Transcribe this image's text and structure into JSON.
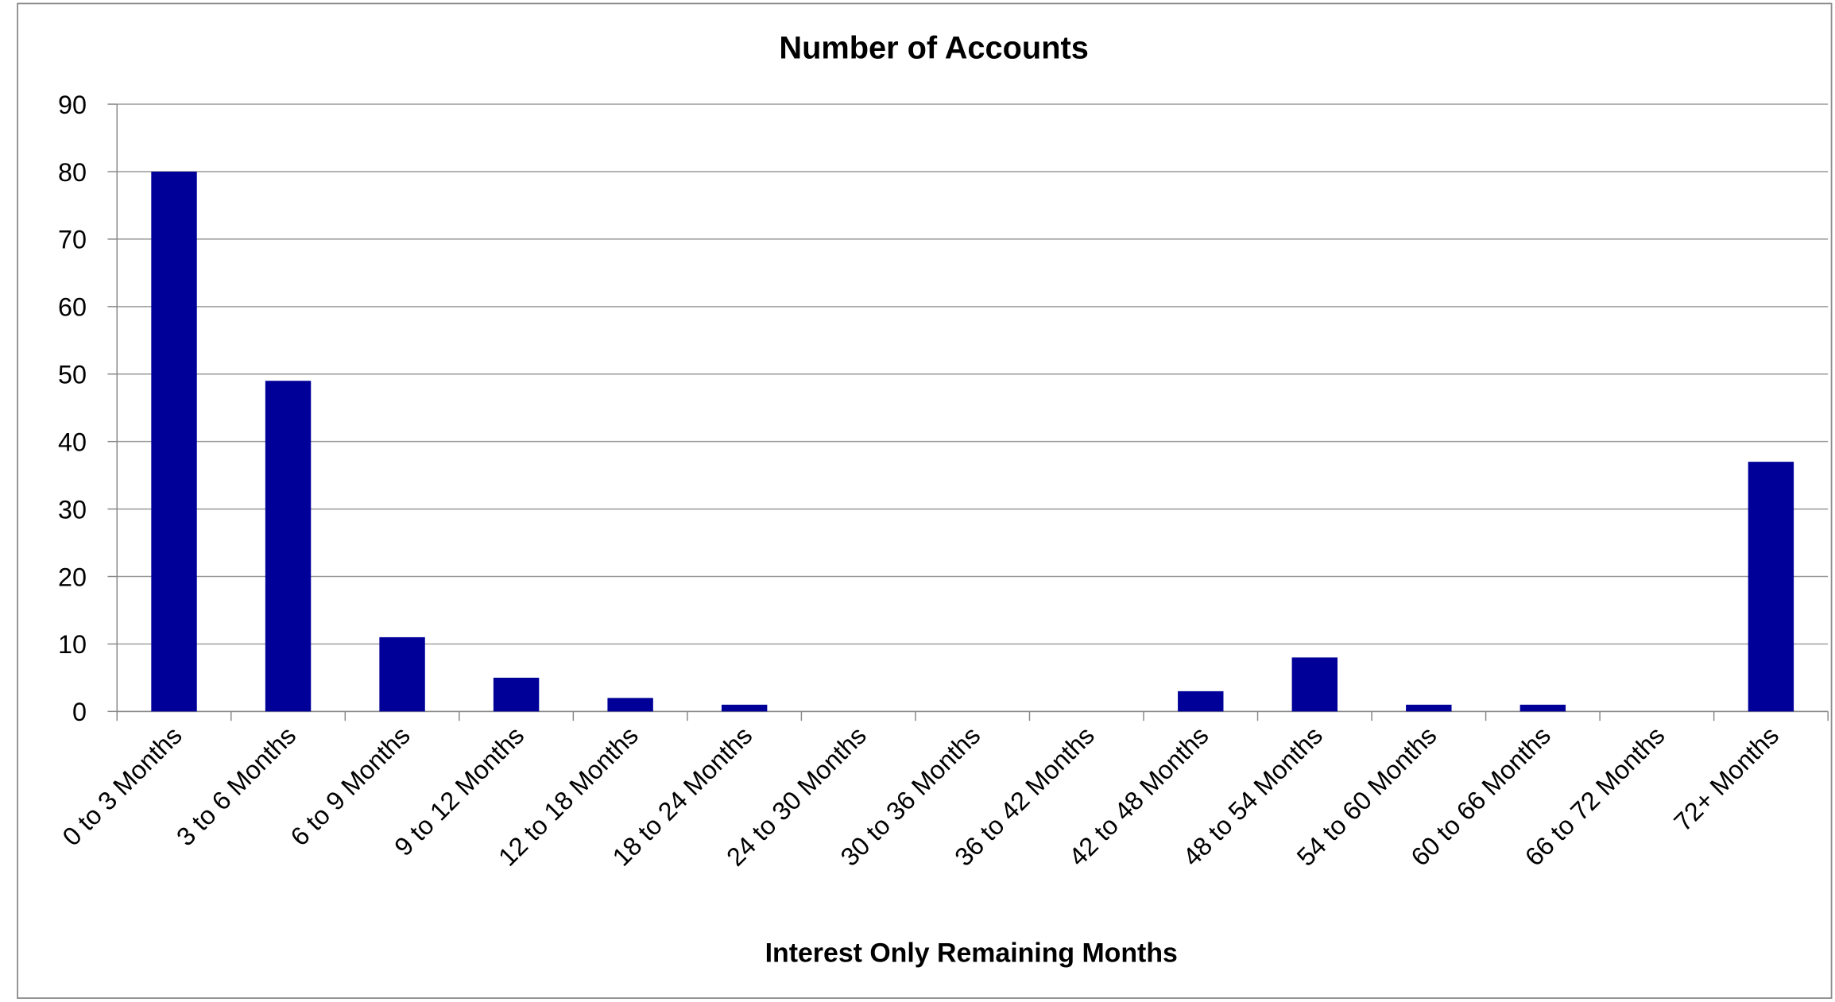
{
  "chart_data": {
    "type": "bar",
    "title": "Number of Accounts",
    "x_label": "Interest Only Remaining Months",
    "categories": [
      "0 to 3 Months",
      "3 to 6 Months",
      "6 to 9 Months",
      "9 to 12 Months",
      "12 to 18 Months",
      "18 to 24 Months",
      "24 to 30 Months",
      "30 to 36 Months",
      "36 to 42 Months",
      "42 to 48 Months",
      "48 to 54 Months",
      "54 to 60 Months",
      "60 to 66 Months",
      "66 to 72 Months",
      "72+ Months"
    ],
    "values": [
      80,
      49,
      11,
      5,
      2,
      1,
      0,
      0,
      0,
      3,
      8,
      1,
      1,
      0,
      37
    ],
    "color": "#000099",
    "ylim": [
      0,
      90
    ],
    "yticks": [
      0,
      10,
      20,
      30,
      40,
      50,
      60,
      70,
      80,
      90
    ],
    "grid": true
  }
}
